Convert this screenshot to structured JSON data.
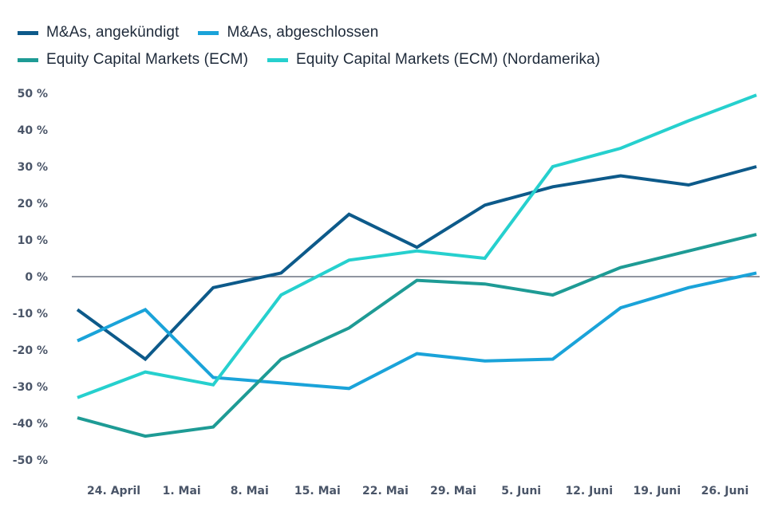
{
  "chart_data": {
    "type": "line",
    "title": "",
    "xlabel": "",
    "ylabel": "",
    "categories": [
      "24. April",
      "1. Mai",
      "8. Mai",
      "15. Mai",
      "22. Mai",
      "29. Mai",
      "5. Juni",
      "12. Juni",
      "19. Juni",
      "26. Juni",
      ""
    ],
    "ylim": [
      -50,
      50
    ],
    "yticks": [
      50,
      40,
      30,
      20,
      10,
      0,
      -10,
      -20,
      -30,
      -40,
      -50
    ],
    "ytick_labels": [
      "50 %",
      "40 %",
      "30 %",
      "20 %",
      "10 %",
      "0 %",
      "-10 %",
      "-20 %",
      "-30 %",
      "-40 %",
      "-50 %"
    ],
    "zero_line": true,
    "grid": false,
    "legend_position": "top-left",
    "series": [
      {
        "name": "M&As, angekündigt",
        "color": "#0d5a8a",
        "values": [
          -9,
          -22.5,
          -3,
          1,
          17,
          8,
          19.5,
          24.5,
          27.5,
          25,
          30
        ]
      },
      {
        "name": "M&As, abgeschlossen",
        "color": "#1aa3d9",
        "values": [
          -17.5,
          -9,
          -27.5,
          -29,
          -30.5,
          -21,
          -23,
          -22.5,
          -8.5,
          -3,
          1
        ]
      },
      {
        "name": "Equity Capital Markets (ECM)",
        "color": "#1e9b95",
        "values": [
          -38.5,
          -43.5,
          -41,
          -22.5,
          -14,
          -1,
          -2,
          -5,
          2.5,
          7,
          11.5
        ]
      },
      {
        "name": "Equity Capital Markets (ECM) (Nordamerika)",
        "color": "#26d0ce",
        "values": [
          -33,
          -26,
          -29.5,
          -5,
          4.5,
          7,
          5,
          30,
          35,
          42.5,
          49.5
        ]
      }
    ]
  }
}
